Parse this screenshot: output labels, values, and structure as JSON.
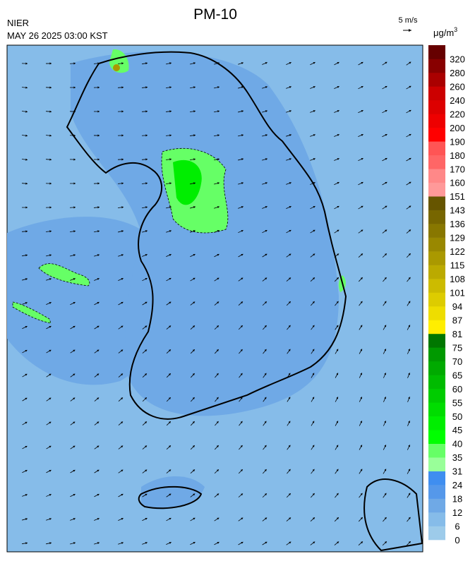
{
  "header": {
    "title": "PM-10",
    "agency": "NIER",
    "timestamp": "MAY 26 2025 03:00 KST"
  },
  "wind_reference": {
    "label": "5 m/s"
  },
  "colorbar": {
    "unit": {
      "base": "μg/m",
      "exponent": "3"
    },
    "ticks": [
      0,
      6,
      12,
      18,
      24,
      31,
      35,
      40,
      45,
      50,
      55,
      60,
      65,
      70,
      75,
      81,
      87,
      94,
      101,
      108,
      115,
      122,
      129,
      136,
      143,
      151,
      160,
      170,
      180,
      190,
      200,
      220,
      240,
      260,
      280,
      320
    ],
    "colors": [
      "#9dcbea",
      "#86bce9",
      "#6fa9e6",
      "#5598ea",
      "#3f8ef0",
      "#99ff99",
      "#66ff66",
      "#00ff00",
      "#00ee00",
      "#00dd00",
      "#00cc00",
      "#00bb00",
      "#00aa00",
      "#009900",
      "#007700",
      "#ffee00",
      "#eedd00",
      "#ddcc00",
      "#ccbb00",
      "#bbaa00",
      "#aa9900",
      "#998800",
      "#887700",
      "#776600",
      "#665500",
      "#ff9999",
      "#ff8888",
      "#ff6666",
      "#ff5555",
      "#ff0000",
      "#ee0000",
      "#dd0000",
      "#cc0000",
      "#aa0000",
      "#880000",
      "#660000"
    ]
  }
}
